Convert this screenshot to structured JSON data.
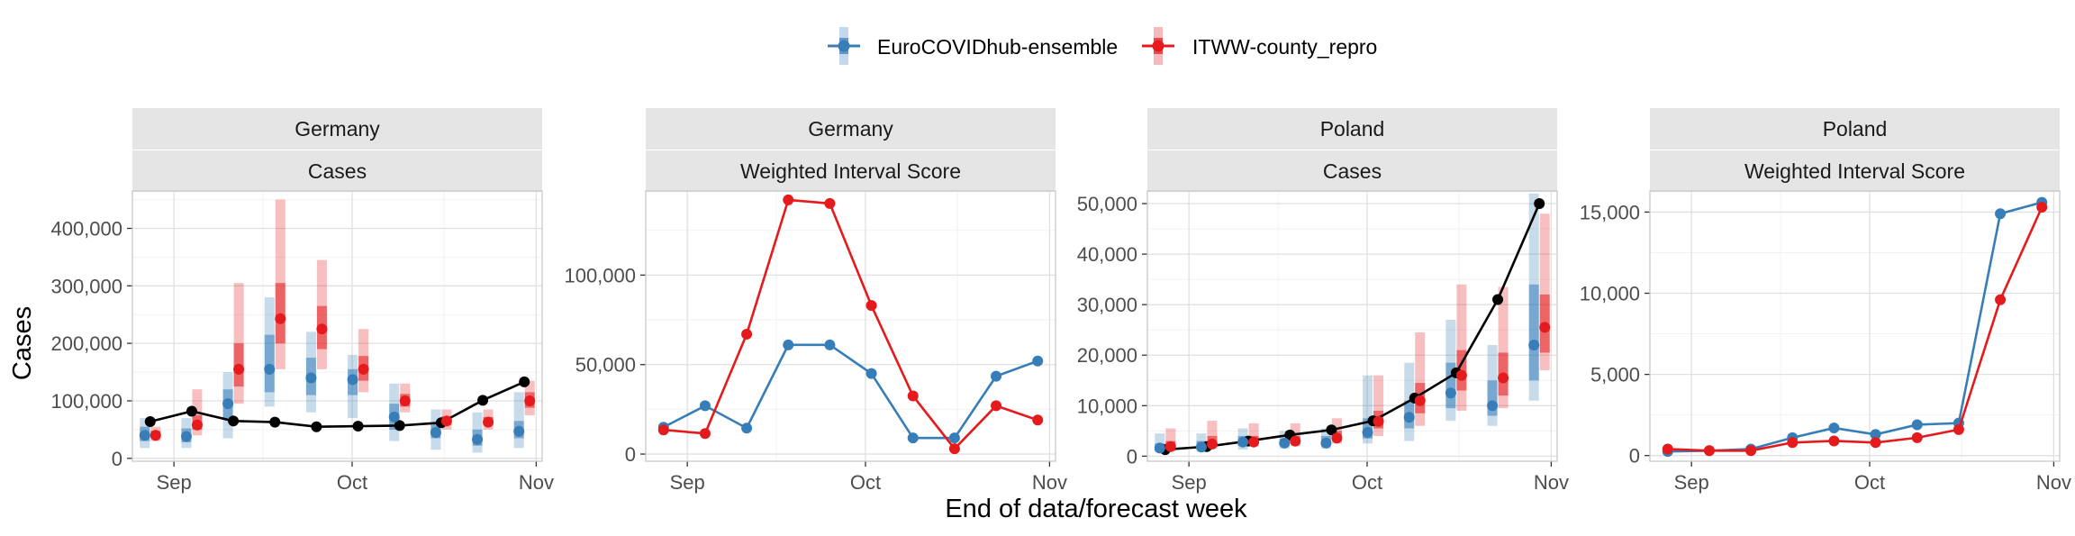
{
  "figure": {
    "ylabel": "Cases",
    "xlabel": "End of data/forecast week",
    "x_tick_labels": [
      "Sep",
      "Oct",
      "Nov"
    ],
    "colors": {
      "ensemble": "#377EB8",
      "itww": "#E41A1C",
      "observed": "#000000",
      "strip_bg": "#E5E5E5",
      "grid_major": "#E0E0E0",
      "grid_minor": "#F2F2F2",
      "panel_border": "#C8C8C8"
    }
  },
  "legend": {
    "items": [
      {
        "label": "EuroCOVIDhub-ensemble",
        "color": "#377EB8"
      },
      {
        "label": "ITWW-county_repro",
        "color": "#E41A1C"
      }
    ]
  },
  "chart_data": [
    {
      "type": "line",
      "panel": "forecast",
      "strip": [
        "Germany",
        "Cases"
      ],
      "x_type": "date",
      "x_ticks": [
        "2021-09-01",
        "2021-10-01",
        "2021-11-01"
      ],
      "x_tick_labels": [
        "Sep",
        "Oct",
        "Nov"
      ],
      "xlim": [
        "2021-08-25",
        "2021-11-02"
      ],
      "ylim": [
        -5000,
        465000
      ],
      "y_ticks": [
        0,
        100000,
        200000,
        300000,
        400000
      ],
      "y_tick_labels": [
        "0",
        "100,000",
        "200,000",
        "300,000",
        "400,000"
      ],
      "observed": {
        "x": [
          "2021-08-28",
          "2021-09-04",
          "2021-09-11",
          "2021-09-18",
          "2021-09-25",
          "2021-10-02",
          "2021-10-09",
          "2021-10-16",
          "2021-10-23",
          "2021-10-30"
        ],
        "values": [
          64000,
          82000,
          65000,
          63000,
          55000,
          56000,
          57000,
          62000,
          101000,
          133000
        ]
      },
      "forecasts": [
        {
          "model": "EuroCOVIDhub-ensemble",
          "x": [
            "2021-08-28",
            "2021-09-04",
            "2021-09-11",
            "2021-09-18",
            "2021-09-25",
            "2021-10-02",
            "2021-10-09",
            "2021-10-16",
            "2021-10-23",
            "2021-10-30"
          ],
          "median": [
            40000,
            38000,
            95000,
            155000,
            140000,
            137000,
            72000,
            45000,
            33000,
            47000
          ],
          "lower90": [
            18000,
            18000,
            35000,
            90000,
            80000,
            70000,
            30000,
            15000,
            10000,
            18000
          ],
          "upper90": [
            70000,
            70000,
            150000,
            280000,
            220000,
            180000,
            130000,
            85000,
            80000,
            115000
          ],
          "lower50": [
            30000,
            28000,
            70000,
            115000,
            110000,
            110000,
            50000,
            35000,
            22000,
            35000
          ],
          "upper50": [
            55000,
            52000,
            120000,
            215000,
            175000,
            155000,
            95000,
            60000,
            50000,
            65000
          ]
        },
        {
          "model": "ITWW-county_repro",
          "x": [
            "2021-08-28",
            "2021-09-04",
            "2021-09-11",
            "2021-09-18",
            "2021-09-25",
            "2021-10-02",
            "2021-10-09",
            "2021-10-16",
            "2021-10-23",
            "2021-10-30"
          ],
          "median": [
            40000,
            58000,
            155000,
            243000,
            225000,
            155000,
            100000,
            65000,
            63000,
            100000
          ],
          "lower90": [
            30000,
            40000,
            95000,
            155000,
            155000,
            115000,
            80000,
            50000,
            50000,
            75000
          ],
          "upper90": [
            55000,
            120000,
            305000,
            450000,
            345000,
            225000,
            130000,
            85000,
            85000,
            135000
          ],
          "lower50": [
            35000,
            50000,
            125000,
            200000,
            190000,
            135000,
            90000,
            58000,
            57000,
            88000
          ],
          "upper50": [
            48000,
            75000,
            200000,
            305000,
            265000,
            178000,
            112000,
            73000,
            72000,
            115000
          ]
        }
      ]
    },
    {
      "type": "line",
      "panel": "score",
      "strip": [
        "Germany",
        "Weighted Interval Score"
      ],
      "x_type": "date",
      "x_ticks": [
        "2021-09-01",
        "2021-10-01",
        "2021-11-01"
      ],
      "x_tick_labels": [
        "Sep",
        "Oct",
        "Nov"
      ],
      "xlim": [
        "2021-08-25",
        "2021-11-02"
      ],
      "ylim": [
        -4000,
        147000
      ],
      "y_ticks": [
        0,
        50000,
        100000
      ],
      "y_tick_labels": [
        "0",
        "50,000",
        "100,000"
      ],
      "series": [
        {
          "name": "EuroCOVIDhub-ensemble",
          "x": [
            "2021-08-28",
            "2021-09-04",
            "2021-09-11",
            "2021-09-18",
            "2021-09-25",
            "2021-10-02",
            "2021-10-09",
            "2021-10-16",
            "2021-10-23",
            "2021-10-30"
          ],
          "values": [
            15000,
            27000,
            14500,
            61000,
            61000,
            45000,
            9000,
            9000,
            43500,
            52000
          ]
        },
        {
          "name": "ITWW-county_repro",
          "x": [
            "2021-08-28",
            "2021-09-04",
            "2021-09-11",
            "2021-09-18",
            "2021-09-25",
            "2021-10-02",
            "2021-10-09",
            "2021-10-16",
            "2021-10-23",
            "2021-10-30"
          ],
          "values": [
            13500,
            11500,
            67000,
            142000,
            140000,
            83000,
            32500,
            3000,
            27000,
            19000
          ]
        }
      ]
    },
    {
      "type": "line",
      "panel": "forecast",
      "strip": [
        "Poland",
        "Cases"
      ],
      "x_type": "date",
      "x_ticks": [
        "2021-09-01",
        "2021-10-01",
        "2021-11-01"
      ],
      "x_tick_labels": [
        "Sep",
        "Oct",
        "Nov"
      ],
      "xlim": [
        "2021-08-25",
        "2021-11-02"
      ],
      "ylim": [
        -1000,
        52500
      ],
      "y_ticks": [
        0,
        10000,
        20000,
        30000,
        40000,
        50000
      ],
      "y_tick_labels": [
        "0",
        "10,000",
        "20,000",
        "30,000",
        "40,000",
        "50,000"
      ],
      "observed": {
        "x": [
          "2021-08-28",
          "2021-09-04",
          "2021-09-11",
          "2021-09-18",
          "2021-09-25",
          "2021-10-02",
          "2021-10-09",
          "2021-10-16",
          "2021-10-23",
          "2021-10-30"
        ],
        "values": [
          1300,
          1900,
          3000,
          4200,
          5200,
          7000,
          11500,
          16500,
          31000,
          50000
        ]
      },
      "forecasts": [
        {
          "model": "EuroCOVIDhub-ensemble",
          "x": [
            "2021-08-28",
            "2021-09-04",
            "2021-09-11",
            "2021-09-18",
            "2021-09-25",
            "2021-10-02",
            "2021-10-09",
            "2021-10-16",
            "2021-10-23",
            "2021-10-30"
          ],
          "median": [
            1600,
            1800,
            2800,
            2600,
            2600,
            4700,
            7700,
            12500,
            10000,
            22000
          ],
          "lower90": [
            800,
            900,
            1300,
            1500,
            1500,
            2500,
            3000,
            7000,
            6000,
            11000
          ],
          "upper90": [
            4500,
            4500,
            5500,
            5000,
            5500,
            16000,
            18500,
            27000,
            22000,
            52000
          ],
          "lower50": [
            1200,
            1400,
            2000,
            2000,
            2000,
            3500,
            5500,
            9500,
            8000,
            15000
          ],
          "upper50": [
            2500,
            3000,
            4000,
            3500,
            4000,
            7500,
            11000,
            18500,
            15000,
            34000
          ]
        },
        {
          "model": "ITWW-county_repro",
          "x": [
            "2021-08-28",
            "2021-09-04",
            "2021-09-11",
            "2021-09-18",
            "2021-09-25",
            "2021-10-02",
            "2021-10-09",
            "2021-10-16",
            "2021-10-23",
            "2021-10-30"
          ],
          "median": [
            1900,
            2400,
            2800,
            3000,
            3600,
            6900,
            11000,
            16000,
            15500,
            25500
          ],
          "lower90": [
            1000,
            1500,
            2000,
            2000,
            2500,
            4000,
            6000,
            9000,
            9500,
            17000
          ],
          "upper90": [
            5500,
            7000,
            6500,
            6500,
            7500,
            16000,
            24500,
            34000,
            33500,
            48000
          ],
          "lower50": [
            1500,
            2000,
            2500,
            2500,
            3000,
            5500,
            8500,
            13000,
            12000,
            20500
          ],
          "upper50": [
            3000,
            4000,
            4000,
            4000,
            5000,
            9000,
            14500,
            21000,
            20500,
            32000
          ]
        }
      ]
    },
    {
      "type": "line",
      "panel": "score",
      "strip": [
        "Poland",
        "Weighted Interval Score"
      ],
      "x_type": "date",
      "x_ticks": [
        "2021-09-01",
        "2021-10-01",
        "2021-11-01"
      ],
      "x_tick_labels": [
        "Sep",
        "Oct",
        "Nov"
      ],
      "xlim": [
        "2021-08-25",
        "2021-11-02"
      ],
      "ylim": [
        -350,
        16300
      ],
      "y_ticks": [
        0,
        5000,
        10000,
        15000
      ],
      "y_tick_labels": [
        "0",
        "5,000",
        "10,000",
        "15,000"
      ],
      "series": [
        {
          "name": "EuroCOVIDhub-ensemble",
          "x": [
            "2021-08-28",
            "2021-09-04",
            "2021-09-11",
            "2021-09-18",
            "2021-09-25",
            "2021-10-02",
            "2021-10-09",
            "2021-10-16",
            "2021-10-23",
            "2021-10-30"
          ],
          "values": [
            250,
            300,
            400,
            1100,
            1700,
            1300,
            1900,
            2000,
            14900,
            15600
          ]
        },
        {
          "name": "ITWW-county_repro",
          "x": [
            "2021-08-28",
            "2021-09-04",
            "2021-09-11",
            "2021-09-18",
            "2021-09-25",
            "2021-10-02",
            "2021-10-09",
            "2021-10-16",
            "2021-10-23",
            "2021-10-30"
          ],
          "values": [
            400,
            300,
            300,
            800,
            900,
            800,
            1100,
            1600,
            9600,
            15300
          ]
        }
      ]
    }
  ]
}
